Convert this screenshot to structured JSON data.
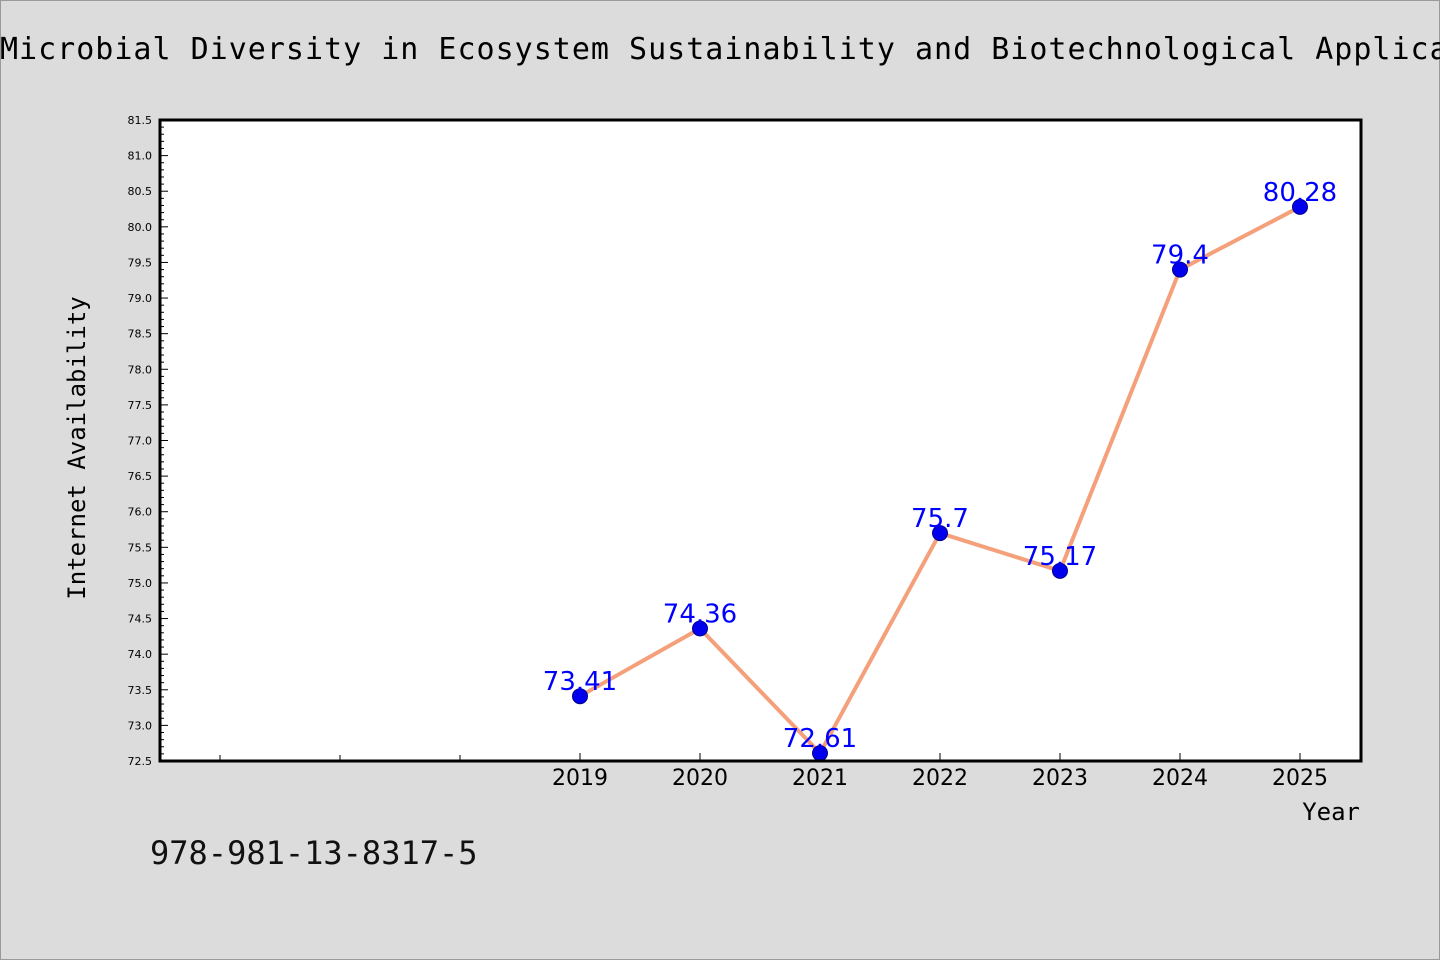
{
  "title": "Microbial Diversity in Ecosystem Sustainability and Biotechnological Applications",
  "footer_text": "978-981-13-8317-5",
  "colors": {
    "background": "#dcdcdc",
    "plot_background": "#ffffff",
    "line": "#f4a07a",
    "marker": "#0000ee",
    "data_label": "#0000ff"
  },
  "chart_data": {
    "type": "line",
    "title": "Microbial Diversity in Ecosystem Sustainability and Biotechnological Applications",
    "xlabel": "Year",
    "ylabel": "Internet Availability",
    "x": [
      "2019",
      "2020",
      "2021",
      "2022",
      "2023",
      "2024",
      "2025"
    ],
    "series": [
      {
        "values": [
          73.41,
          74.36,
          72.61,
          75.7,
          75.17,
          79.4,
          80.28
        ],
        "data_labels": [
          "73.41",
          "74.36",
          "72.61",
          "75.7",
          "75.17",
          "79.4",
          "80.28"
        ]
      }
    ],
    "ylim": [
      72.5,
      81.5
    ],
    "yticks": [
      "72.5",
      "73.0",
      "73.5",
      "74.0",
      "74.5",
      "75.0",
      "75.5",
      "76.0",
      "76.5",
      "77.0",
      "77.5",
      "78.0",
      "78.5",
      "79.0",
      "79.5",
      "80.0",
      "80.5",
      "81.0",
      "81.5"
    ],
    "grid": false,
    "legend": "none"
  }
}
